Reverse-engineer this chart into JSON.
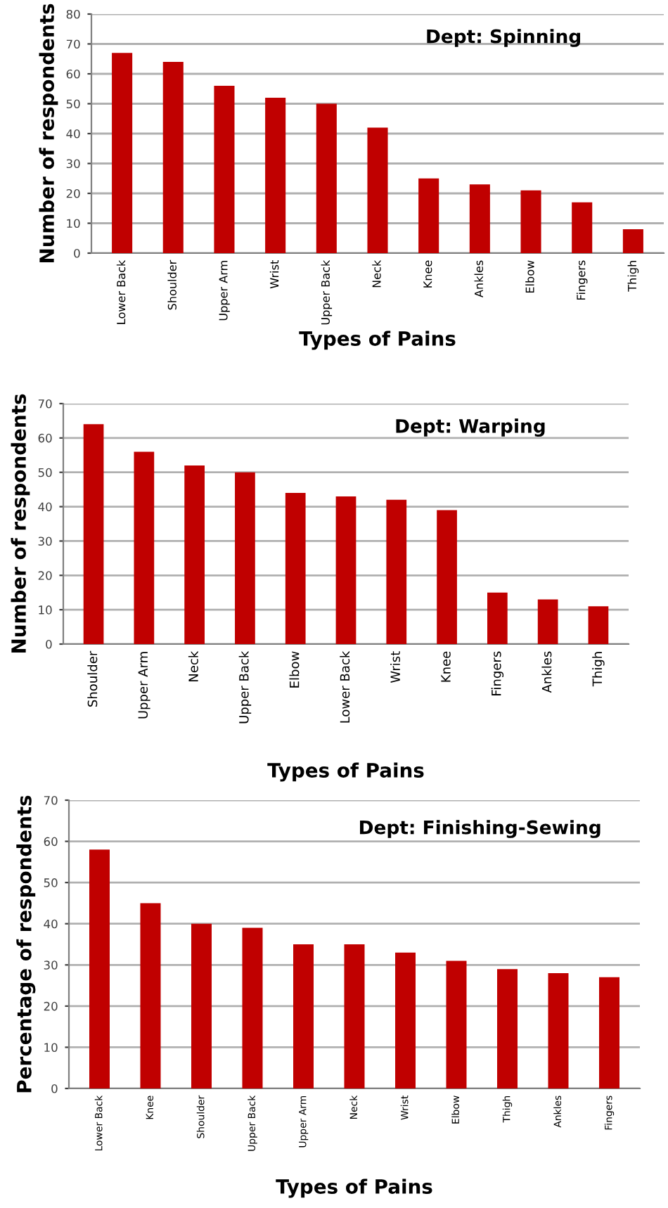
{
  "chart_data": [
    {
      "type": "bar",
      "title": "Dept: Spinning",
      "xlabel": "Types of Pains",
      "ylabel": "Number of respondents",
      "categories": [
        "Lower Back",
        "Shoulder",
        "Upper Arm",
        "Wrist",
        "Upper Back",
        "Neck",
        "Knee",
        "Ankles",
        "Elbow",
        "Fingers",
        "Thigh"
      ],
      "values": [
        67,
        64,
        56,
        52,
        50,
        42,
        25,
        23,
        21,
        17,
        8
      ],
      "color": "#c00000",
      "ylim": [
        0,
        80
      ],
      "yticks": [
        0,
        10,
        20,
        30,
        40,
        50,
        60,
        70,
        80
      ],
      "grid": "y",
      "legend": false
    },
    {
      "type": "bar",
      "title": "Dept: Warping",
      "xlabel": "Types of Pains",
      "ylabel": "Number of respondents",
      "categories": [
        "Shoulder",
        "Upper Arm",
        "Neck",
        "Upper Back",
        "Elbow",
        "Lower Back",
        "Wrist",
        "Knee",
        "Fingers",
        "Ankles",
        "Thigh"
      ],
      "values": [
        64,
        56,
        52,
        50,
        44,
        43,
        42,
        39,
        15,
        13,
        11
      ],
      "color": "#c00000",
      "ylim": [
        0,
        70
      ],
      "yticks": [
        0,
        10,
        20,
        30,
        40,
        50,
        60,
        70
      ],
      "grid": "y",
      "legend": false
    },
    {
      "type": "bar",
      "title": "Dept: Finishing-Sewing",
      "xlabel": "Types of Pains",
      "ylabel": "Percentage of respondents",
      "categories": [
        "Lower Back",
        "Knee",
        "Shoulder",
        "Upper Back",
        "Upper Arm",
        "Neck",
        "Wrist",
        "Elbow",
        "Thigh",
        "Ankles",
        "Fingers"
      ],
      "values": [
        58,
        45,
        40,
        39,
        35,
        35,
        33,
        31,
        29,
        28,
        27
      ],
      "color": "#c00000",
      "ylim": [
        0,
        70
      ],
      "yticks": [
        0,
        10,
        20,
        30,
        40,
        50,
        60,
        70
      ],
      "grid": "y",
      "legend": false
    }
  ]
}
